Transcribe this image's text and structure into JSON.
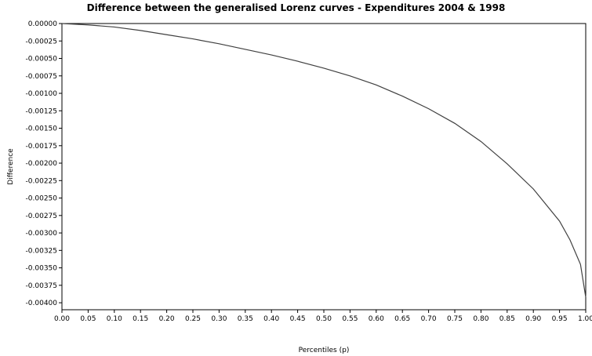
{
  "chart_data": {
    "type": "line",
    "title": "Difference between the generalised Lorenz curves - Expenditures 2004 & 1998",
    "xlabel": "Percentiles (p)",
    "ylabel": "Difference",
    "xlim": [
      0,
      1
    ],
    "ylim": [
      -0.0041,
      0
    ],
    "x_ticks": [
      "0.00",
      "0.05",
      "0.10",
      "0.15",
      "0.20",
      "0.25",
      "0.30",
      "0.35",
      "0.40",
      "0.45",
      "0.50",
      "0.55",
      "0.60",
      "0.65",
      "0.70",
      "0.75",
      "0.80",
      "0.85",
      "0.90",
      "0.95",
      "1.00"
    ],
    "y_ticks": [
      "0.00000",
      "-0.00025",
      "-0.00050",
      "-0.00075",
      "-0.00100",
      "-0.00125",
      "-0.00150",
      "-0.00175",
      "-0.00200",
      "-0.00225",
      "-0.00250",
      "-0.00275",
      "-0.00300",
      "-0.00325",
      "-0.00350",
      "-0.00375",
      "-0.00400"
    ],
    "grid": false,
    "legend": "none",
    "series": [
      {
        "color": "#404040",
        "x": [
          0.0,
          0.05,
          0.1,
          0.15,
          0.2,
          0.25,
          0.3,
          0.35,
          0.4,
          0.45,
          0.5,
          0.55,
          0.6,
          0.65,
          0.7,
          0.75,
          0.8,
          0.85,
          0.9,
          0.95,
          0.97,
          0.99,
          1.0
        ],
        "y": [
          0.0,
          -2e-05,
          -5e-05,
          -0.0001,
          -0.00016,
          -0.00022,
          -0.00029,
          -0.00037,
          -0.00045,
          -0.00054,
          -0.00064,
          -0.00075,
          -0.00088,
          -0.00104,
          -0.00122,
          -0.00143,
          -0.00169,
          -0.00201,
          -0.00237,
          -0.00283,
          -0.0031,
          -0.00345,
          -0.00392
        ]
      }
    ]
  }
}
